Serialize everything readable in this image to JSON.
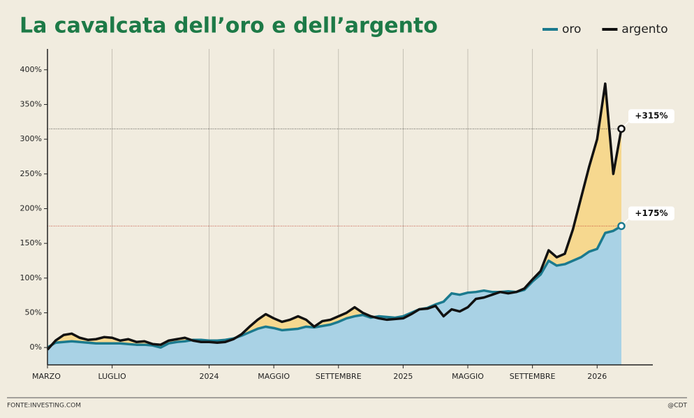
{
  "chart_data": {
    "type": "line",
    "title": "La cavalcata dell’oro e dell’argento",
    "source": "FONTE:INVESTING.COM",
    "credit": "@CDT",
    "categories": [
      "MARZO",
      null,
      null,
      null,
      null,
      null,
      null,
      null,
      "LUGLIO",
      null,
      null,
      null,
      null,
      null,
      null,
      null,
      null,
      null,
      null,
      null,
      "2024",
      null,
      null,
      null,
      null,
      null,
      null,
      null,
      "MAGGIO",
      null,
      null,
      null,
      null,
      null,
      null,
      null,
      "SETTEMBRE",
      null,
      null,
      null,
      null,
      null,
      null,
      null,
      "2025",
      null,
      null,
      null,
      null,
      null,
      null,
      null,
      "MAGGIO",
      null,
      null,
      null,
      null,
      null,
      null,
      null,
      "SETTEMBRE",
      null,
      null,
      null,
      null,
      null,
      null,
      null,
      "2026",
      null,
      null,
      null
    ],
    "series": [
      {
        "name": "oro",
        "color": "#1b7a8e",
        "fill": "#a9d2e5",
        "values": [
          0,
          7,
          8,
          9,
          8,
          7,
          6,
          6,
          6,
          6,
          5,
          4,
          4,
          3,
          0,
          6,
          8,
          9,
          11,
          11,
          10,
          10,
          11,
          13,
          17,
          22,
          27,
          30,
          28,
          25,
          26,
          27,
          30,
          29,
          31,
          33,
          37,
          42,
          45,
          47,
          43,
          45,
          44,
          43,
          45,
          50,
          55,
          57,
          62,
          66,
          78,
          76,
          79,
          80,
          82,
          80,
          80,
          81,
          80,
          83,
          95,
          105,
          125,
          118,
          120,
          125,
          130,
          138,
          142,
          165,
          168,
          175
        ]
      },
      {
        "name": "argento",
        "color": "#111111",
        "fill": "#f6d88f",
        "values": [
          -3,
          10,
          18,
          20,
          14,
          11,
          12,
          15,
          14,
          10,
          12,
          8,
          9,
          5,
          4,
          10,
          12,
          14,
          10,
          8,
          8,
          7,
          8,
          12,
          19,
          30,
          40,
          48,
          42,
          37,
          40,
          45,
          40,
          30,
          38,
          40,
          45,
          50,
          58,
          50,
          45,
          42,
          40,
          41,
          42,
          48,
          55,
          56,
          60,
          45,
          55,
          52,
          58,
          70,
          72,
          76,
          80,
          78,
          80,
          85,
          98,
          110,
          140,
          130,
          135,
          170,
          215,
          260,
          300,
          380,
          250,
          315
        ]
      }
    ],
    "annotations": [
      "+175%",
      "+315%"
    ],
    "ylim": [
      -25,
      430
    ],
    "yticks": [
      {
        "value": 0,
        "label": "0%"
      },
      {
        "value": 50,
        "label": "50%"
      },
      {
        "value": 100,
        "label": "100%"
      },
      {
        "value": 150,
        "label": "150%"
      },
      {
        "value": 200,
        "label": "200%"
      },
      {
        "value": 250,
        "label": "250%"
      },
      {
        "value": 300,
        "label": "300%"
      },
      {
        "value": 350,
        "label": "350%"
      },
      {
        "value": 400,
        "label": "400%"
      }
    ]
  }
}
